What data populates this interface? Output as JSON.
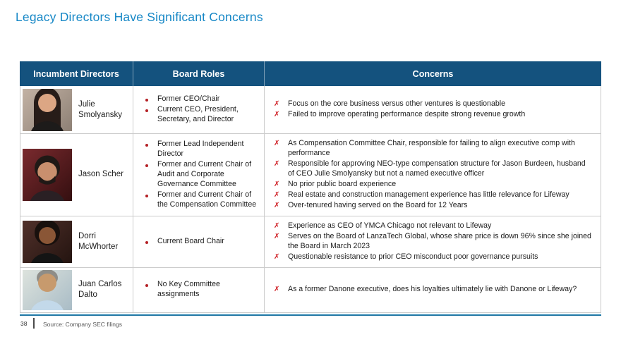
{
  "slide": {
    "title": "Legacy Directors Have Significant Concerns",
    "page_number": "38",
    "source_note": "Source: Company SEC filings",
    "colors": {
      "title_blue": "#1687c6",
      "header_bg": "#14527e",
      "bullet_red": "#b42025",
      "concern_x_red": "#d02127",
      "footer_line_blue": "#2b7ca7",
      "row_border_gray": "#cccccc"
    }
  },
  "table": {
    "headers": [
      "Incumbent Directors",
      "Board Roles",
      "Concerns"
    ],
    "directors": [
      {
        "name": "Julie Smolyansky",
        "photo": {
          "icon": "headshot-photo",
          "bg": "linear-gradient(135deg,#c3b2a4,#8d8075)",
          "hair": "#271c18",
          "skin": "#dca684",
          "shirt": "#1d1b1a"
        },
        "roles": [
          "Former CEO/Chair",
          "Current CEO, President, Secretary, and Director"
        ],
        "concerns": [
          "Focus on the core business versus other ventures is questionable",
          "Failed to improve operating performance despite strong revenue growth"
        ]
      },
      {
        "name": "Jason Scher",
        "photo": {
          "icon": "headshot-photo",
          "bg": "linear-gradient(135deg,#7a2a2e,#340f10)",
          "hair": "#201916",
          "skin": "#c98f6e",
          "shirt": "#2a2024"
        },
        "roles": [
          "Former Lead Independent Director",
          "Former and Current Chair of Audit and Corporate Governance Committee",
          "Former and Current Chair of the Compensation Committee"
        ],
        "concerns": [
          "As Compensation Committee Chair, responsible for failing to align executive comp with performance",
          "Responsible for approving NEO-type compensation structure for Jason Burdeen, husband of CEO Julie Smolyansky but not a named executive officer",
          "No prior public board experience",
          "Real estate and construction management experience has little relevance for Lifeway",
          "Over-tenured having served on the Board for 12 Years"
        ]
      },
      {
        "name": "Dorri McWhorter",
        "photo": {
          "icon": "headshot-photo",
          "bg": "linear-gradient(135deg,#50302a,#241410)",
          "hair": "#18100d",
          "skin": "#8a5636",
          "shirt": "#141414"
        },
        "roles": [
          "Current Board Chair"
        ],
        "concerns": [
          "Experience as CEO of YMCA Chicago not relevant to Lifeway",
          "Serves on the Board of LanzaTech Global, whose share price is down 96% since she joined the Board in March 2023",
          "Questionable resistance to prior CEO misconduct poor governance pursuits"
        ]
      },
      {
        "name": "Juan Carlos Dalto",
        "photo": {
          "icon": "headshot-photo",
          "bg": "linear-gradient(135deg,#dde3dd,#a9bcc6)",
          "hair": "#8e8d88",
          "skin": "#c79a6d",
          "shirt": "#c3d9ea"
        },
        "roles": [
          "No Key Committee assignments"
        ],
        "concerns": [
          "As a former Danone executive, does his loyalties ultimately lie with Danone or Lifeway?"
        ]
      }
    ]
  }
}
